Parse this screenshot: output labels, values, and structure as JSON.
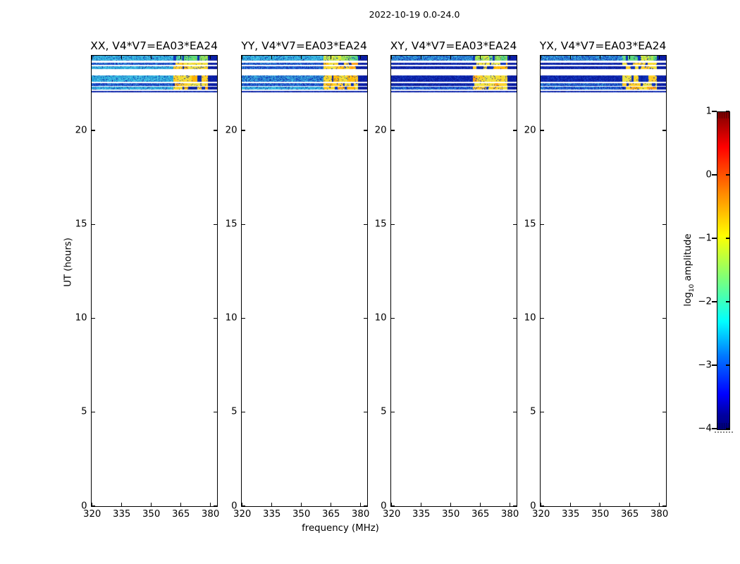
{
  "figure": {
    "suptitle": "2022-10-19 0.0-24.0",
    "xlabel": "frequency (MHz)",
    "ylabel": "UT (hours)",
    "colorbar_label_prefix": "log",
    "colorbar_label_sub": "10",
    "colorbar_label_suffix": " amplitude"
  },
  "chart_data": {
    "type": "heatmap",
    "title": "2022-10-19 0.0-24.0",
    "xlabel": "frequency (MHz)",
    "ylabel": "UT (hours)",
    "x_range": [
      319.6,
      383.2
    ],
    "x_ticks": [
      320,
      335,
      350,
      365,
      380
    ],
    "y_range": [
      0,
      24
    ],
    "y_ticks": [
      0,
      5,
      10,
      15,
      20
    ],
    "bright_region_mhz": [
      361,
      378.5
    ],
    "notes": "dynamic-spectrum panels; emission bands only between ~22.0 and ~24.0 UT, panels blank (white) elsewhere; bright yellow/orange patches between ~361 and ~378.5 MHz with dark blue channel gaps; far right edge of each band dark blue",
    "colorbar": {
      "label": "log10 amplitude",
      "colormap": "jet",
      "vmin": -4,
      "vmax": 1,
      "tick_values": [
        1,
        0,
        -1,
        -2,
        -3,
        -4
      ],
      "tick_labels": [
        "1",
        "0",
        "−1",
        "−2",
        "−3",
        "−4"
      ]
    },
    "panels": [
      {
        "pol": "XX",
        "title": "XX, V4*V7=EA03*EA24",
        "bands": [
          {
            "ut": [
              23.72,
              23.99
            ],
            "base": "cyan",
            "right": "green"
          },
          {
            "ut": [
              23.52,
              23.63
            ],
            "base": "blue",
            "right": "warm"
          },
          {
            "ut": [
              23.29,
              23.44
            ],
            "base": "cyan",
            "right": "warm"
          },
          {
            "ut": [
              22.62,
              22.93
            ],
            "base": "cyan",
            "right": "warm"
          },
          {
            "ut": [
              22.38,
              22.52
            ],
            "base": "blue",
            "right": "warm"
          },
          {
            "ut": [
              22.18,
              22.33
            ],
            "base": "cyan",
            "right": "warm"
          },
          {
            "ut": [
              22.06,
              22.11
            ],
            "base": "navy",
            "right": "dark"
          }
        ]
      },
      {
        "pol": "YY",
        "title": "YY, V4*V7=EA03*EA24",
        "bands": [
          {
            "ut": [
              23.72,
              23.99
            ],
            "base": "cyan",
            "right": "green"
          },
          {
            "ut": [
              23.52,
              23.63
            ],
            "base": "blue",
            "right": "warm"
          },
          {
            "ut": [
              23.29,
              23.44
            ],
            "base": "blue",
            "right": "warm"
          },
          {
            "ut": [
              22.62,
              22.93
            ],
            "base": "cyanblue",
            "right": "warm"
          },
          {
            "ut": [
              22.38,
              22.52
            ],
            "base": "blue",
            "right": "warm"
          },
          {
            "ut": [
              22.18,
              22.33
            ],
            "base": "cyan",
            "right": "warm"
          },
          {
            "ut": [
              22.06,
              22.11
            ],
            "base": "navy",
            "right": "dark"
          }
        ]
      },
      {
        "pol": "XY",
        "title": "XY, V4*V7=EA03*EA24",
        "bands": [
          {
            "ut": [
              23.72,
              23.99
            ],
            "base": "cyanblue",
            "right": "green"
          },
          {
            "ut": [
              23.52,
              23.63
            ],
            "base": "navy",
            "right": "warm"
          },
          {
            "ut": [
              23.29,
              23.44
            ],
            "base": "navy",
            "right": "warm"
          },
          {
            "ut": [
              22.62,
              22.93
            ],
            "base": "navy",
            "right": "warm"
          },
          {
            "ut": [
              22.38,
              22.52
            ],
            "base": "navy",
            "right": "warm"
          },
          {
            "ut": [
              22.18,
              22.33
            ],
            "base": "blue",
            "right": "warm"
          },
          {
            "ut": [
              22.06,
              22.11
            ],
            "base": "navy",
            "right": "dark"
          }
        ]
      },
      {
        "pol": "YX",
        "title": "YX, V4*V7=EA03*EA24",
        "bands": [
          {
            "ut": [
              23.72,
              23.99
            ],
            "base": "cyanblue",
            "right": "green"
          },
          {
            "ut": [
              23.52,
              23.63
            ],
            "base": "navy",
            "right": "warm"
          },
          {
            "ut": [
              23.29,
              23.44
            ],
            "base": "navy",
            "right": "warm"
          },
          {
            "ut": [
              22.62,
              22.93
            ],
            "base": "navy",
            "right": "warm"
          },
          {
            "ut": [
              22.38,
              22.52
            ],
            "base": "blue",
            "right": "warm"
          },
          {
            "ut": [
              22.18,
              22.33
            ],
            "base": "blue",
            "right": "warm"
          },
          {
            "ut": [
              22.06,
              22.11
            ],
            "base": "navy",
            "right": "dark"
          }
        ]
      }
    ]
  }
}
